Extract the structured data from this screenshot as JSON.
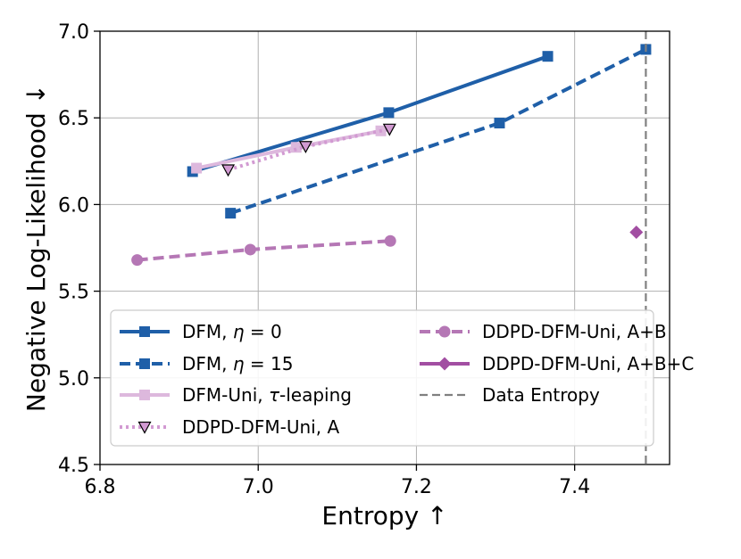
{
  "chart_data": {
    "type": "line",
    "xlabel": "Entropy ↑",
    "ylabel": "Negative Log-Likelihood ↓",
    "xlim": [
      6.8,
      7.52
    ],
    "ylim": [
      4.5,
      7.0
    ],
    "xticks": [
      "6.8",
      "7.0",
      "7.2",
      "7.4"
    ],
    "xtick_values": [
      6.8,
      7.0,
      7.2,
      7.4
    ],
    "yticks": [
      "4.5",
      "5.0",
      "5.5",
      "6.0",
      "6.5",
      "7.0"
    ],
    "ytick_values": [
      4.5,
      5.0,
      5.5,
      6.0,
      6.5,
      7.0
    ],
    "grid": true,
    "legend_position": "lower-right",
    "series": [
      {
        "name": "DFM, η = 0",
        "name_parts": [
          "DFM, ",
          "η",
          " = 0"
        ],
        "color": "#1f5fa8",
        "line": "solid",
        "marker": "square",
        "x": [
          6.917,
          7.165,
          7.366
        ],
        "y": [
          6.19,
          6.53,
          6.855
        ]
      },
      {
        "name": "DFM, η = 15",
        "name_parts": [
          "DFM, ",
          "η",
          " = 15"
        ],
        "color": "#1f5fa8",
        "line": "dashed",
        "marker": "square",
        "x": [
          6.965,
          7.305,
          7.49
        ],
        "y": [
          5.95,
          6.47,
          6.895
        ]
      },
      {
        "name": "DFM-Uni, τ-leaping",
        "name_parts": [
          "DFM-Uni, ",
          "τ",
          "-leaping"
        ],
        "color": "#ddb8dd",
        "line": "solid",
        "marker": "square",
        "x": [
          6.922,
          7.048,
          7.155
        ],
        "y": [
          6.21,
          6.33,
          6.425
        ]
      },
      {
        "name": "DDPD-DFM-Uni, A",
        "name_parts": [
          "DDPD-DFM-Uni, A"
        ],
        "color": "#d29ad2",
        "line": "dotted",
        "marker": "triangle-down",
        "x": [
          6.962,
          7.06,
          7.166
        ],
        "y": [
          6.2,
          6.335,
          6.435
        ]
      },
      {
        "name": "DDPD-DFM-Uni, A+B",
        "name_parts": [
          "DDPD-DFM-Uni, A+B"
        ],
        "color": "#b577b5",
        "line": "dashed",
        "marker": "circle",
        "x": [
          6.847,
          6.99,
          7.167
        ],
        "y": [
          5.68,
          5.74,
          5.79
        ]
      },
      {
        "name": "DDPD-DFM-Uni, A+B+C",
        "name_parts": [
          "DDPD-DFM-Uni, A+B+C"
        ],
        "color": "#a24ea2",
        "line": "solid",
        "marker": "diamond",
        "x": [
          7.478
        ],
        "y": [
          5.84
        ]
      },
      {
        "name": "Data Entropy",
        "name_parts": [
          "Data Entropy"
        ],
        "color": "#808080",
        "line": "dashed",
        "marker": "none",
        "vline_x": 7.49
      }
    ]
  }
}
